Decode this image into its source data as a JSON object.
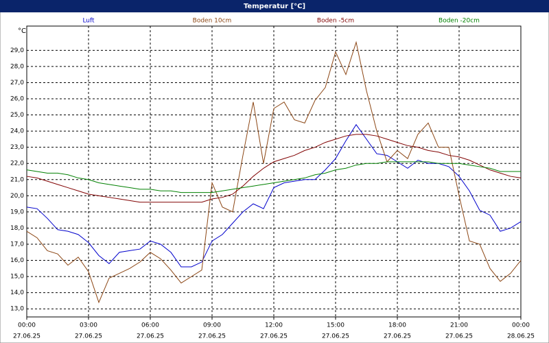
{
  "chart_data": {
    "type": "line",
    "title": "Temperatur [°C]",
    "y_unit": "°C",
    "grid": true,
    "xlim": [
      0,
      24
    ],
    "ylim": [
      12.5,
      30.5
    ],
    "xticks": [
      {
        "value": 0,
        "label": "00:00",
        "date": "27.06.25"
      },
      {
        "value": 3,
        "label": "03:00",
        "date": "27.06.25"
      },
      {
        "value": 6,
        "label": "06:00",
        "date": "27.06.25"
      },
      {
        "value": 9,
        "label": "09:00",
        "date": "27.06.25"
      },
      {
        "value": 12,
        "label": "12:00",
        "date": "27.06.25"
      },
      {
        "value": 15,
        "label": "15:00",
        "date": "27.06.25"
      },
      {
        "value": 18,
        "label": "18:00",
        "date": "27.06.25"
      },
      {
        "value": 21,
        "label": "21:00",
        "date": "27.06.25"
      },
      {
        "value": 24,
        "label": "00:00",
        "date": "28.06.25"
      }
    ],
    "yticks": [
      {
        "value": 13,
        "label": "13,0"
      },
      {
        "value": 14,
        "label": "14,0"
      },
      {
        "value": 15,
        "label": "15,0"
      },
      {
        "value": 16,
        "label": "16,0"
      },
      {
        "value": 17,
        "label": "17,0"
      },
      {
        "value": 18,
        "label": "18,0"
      },
      {
        "value": 19,
        "label": "19,0"
      },
      {
        "value": 20,
        "label": "20,0"
      },
      {
        "value": 21,
        "label": "21,0"
      },
      {
        "value": 22,
        "label": "22,0"
      },
      {
        "value": 23,
        "label": "23,0"
      },
      {
        "value": 24,
        "label": "24,0"
      },
      {
        "value": 25,
        "label": "25,0"
      },
      {
        "value": 26,
        "label": "26,0"
      },
      {
        "value": 27,
        "label": "27,0"
      },
      {
        "value": 28,
        "label": "28,0"
      },
      {
        "value": 29,
        "label": "29,0"
      }
    ],
    "x": [
      0,
      0.5,
      1,
      1.5,
      2,
      2.5,
      3,
      3.5,
      4,
      4.5,
      5,
      5.5,
      6,
      6.5,
      7,
      7.5,
      8,
      8.5,
      9,
      9.5,
      10,
      10.5,
      11,
      11.5,
      12,
      12.5,
      13,
      13.5,
      14,
      14.5,
      15,
      15.5,
      16,
      16.5,
      17,
      17.5,
      18,
      18.5,
      19,
      19.5,
      20,
      20.5,
      21,
      21.5,
      22,
      22.5,
      23,
      23.5,
      24
    ],
    "series": [
      {
        "name": "Luft",
        "color": "#0000cc",
        "values": [
          19.3,
          19.2,
          18.6,
          17.9,
          17.8,
          17.6,
          17.1,
          16.3,
          15.8,
          16.5,
          16.6,
          16.7,
          17.2,
          17.0,
          16.5,
          15.6,
          15.6,
          15.9,
          17.2,
          17.6,
          18.3,
          19.0,
          19.5,
          19.2,
          20.5,
          20.8,
          20.9,
          21.0,
          21.0,
          21.6,
          22.3,
          23.4,
          24.4,
          23.5,
          22.6,
          22.5,
          22.1,
          21.7,
          22.2,
          22.0,
          22.0,
          21.8,
          21.2,
          20.3,
          19.1,
          18.8,
          17.8,
          18.0,
          18.4
        ]
      },
      {
        "name": "Boden 10cm",
        "color": "#8b4513",
        "values": [
          17.8,
          17.4,
          16.6,
          16.4,
          15.7,
          16.2,
          15.3,
          13.4,
          14.9,
          15.2,
          15.5,
          15.9,
          16.5,
          16.1,
          15.4,
          14.6,
          15.0,
          15.4,
          20.8,
          19.3,
          19.0,
          22.5,
          25.8,
          22.0,
          25.4,
          25.8,
          24.7,
          24.5,
          25.9,
          26.7,
          28.9,
          27.5,
          29.5,
          26.5,
          24.0,
          22.1,
          22.8,
          22.3,
          23.8,
          24.5,
          23.0,
          23.0,
          20.0,
          17.2,
          17.0,
          15.5,
          14.7,
          15.2,
          16.0
        ]
      },
      {
        "name": "Boden -5cm",
        "color": "#800000",
        "values": [
          21.2,
          21.1,
          20.9,
          20.7,
          20.5,
          20.3,
          20.1,
          20.0,
          19.9,
          19.8,
          19.7,
          19.6,
          19.6,
          19.6,
          19.6,
          19.6,
          19.6,
          19.6,
          19.8,
          19.9,
          20.1,
          20.6,
          21.2,
          21.7,
          22.1,
          22.3,
          22.5,
          22.8,
          23.0,
          23.3,
          23.5,
          23.7,
          23.8,
          23.8,
          23.7,
          23.5,
          23.3,
          23.1,
          23.0,
          22.8,
          22.7,
          22.5,
          22.4,
          22.2,
          21.9,
          21.6,
          21.4,
          21.2,
          21.1
        ]
      },
      {
        "name": "Boden -20cm",
        "color": "#008000",
        "values": [
          21.6,
          21.5,
          21.4,
          21.4,
          21.3,
          21.1,
          21.0,
          20.8,
          20.7,
          20.6,
          20.5,
          20.4,
          20.4,
          20.3,
          20.3,
          20.2,
          20.2,
          20.2,
          20.2,
          20.3,
          20.4,
          20.5,
          20.6,
          20.7,
          20.8,
          20.9,
          21.0,
          21.1,
          21.3,
          21.4,
          21.6,
          21.7,
          21.9,
          22.0,
          22.0,
          22.1,
          22.1,
          22.1,
          22.1,
          22.1,
          22.0,
          22.0,
          22.0,
          21.9,
          21.8,
          21.7,
          21.5,
          21.5,
          21.5
        ]
      }
    ]
  }
}
